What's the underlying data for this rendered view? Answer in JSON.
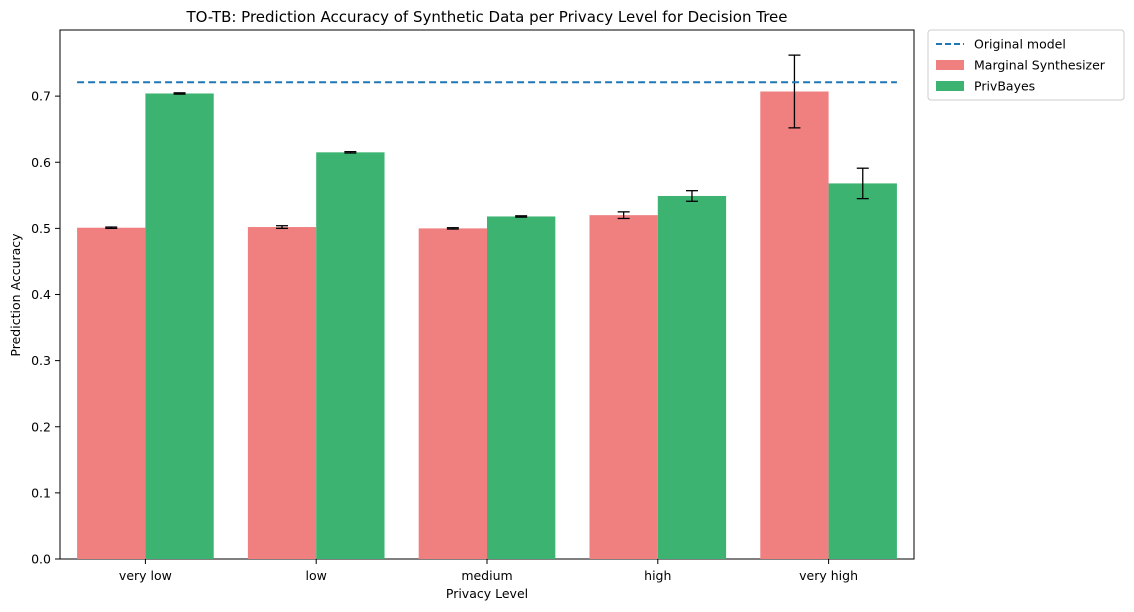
{
  "chart_data": {
    "type": "bar",
    "title": "TO-TB: Prediction Accuracy of Synthetic Data per Privacy Level for Decision Tree",
    "xlabel": "Privacy Level",
    "ylabel": "Prediction Accuracy",
    "categories": [
      "very low",
      "low",
      "medium",
      "high",
      "very high"
    ],
    "ylim": [
      0,
      0.8
    ],
    "yticks": [
      0.0,
      0.1,
      0.2,
      0.3,
      0.4,
      0.5,
      0.6,
      0.7
    ],
    "ytick_labels": [
      "0.0",
      "0.1",
      "0.2",
      "0.3",
      "0.4",
      "0.5",
      "0.6",
      "0.7"
    ],
    "series": [
      {
        "name": "Marginal Synthesizer",
        "color": "#f08080",
        "values": [
          0.501,
          0.502,
          0.5,
          0.52,
          0.707
        ],
        "errors": [
          0.001,
          0.002,
          0.001,
          0.005,
          0.055
        ]
      },
      {
        "name": "PrivBayes",
        "color": "#3cb371",
        "values": [
          0.704,
          0.615,
          0.518,
          0.549,
          0.568
        ],
        "errors": [
          0.001,
          0.001,
          0.001,
          0.008,
          0.023
        ]
      }
    ],
    "reference_line": {
      "name": "Original model",
      "value": 0.721,
      "color": "#1f77b4",
      "style": "dashed"
    },
    "legend_position": "outside-top-right",
    "grid": false
  }
}
